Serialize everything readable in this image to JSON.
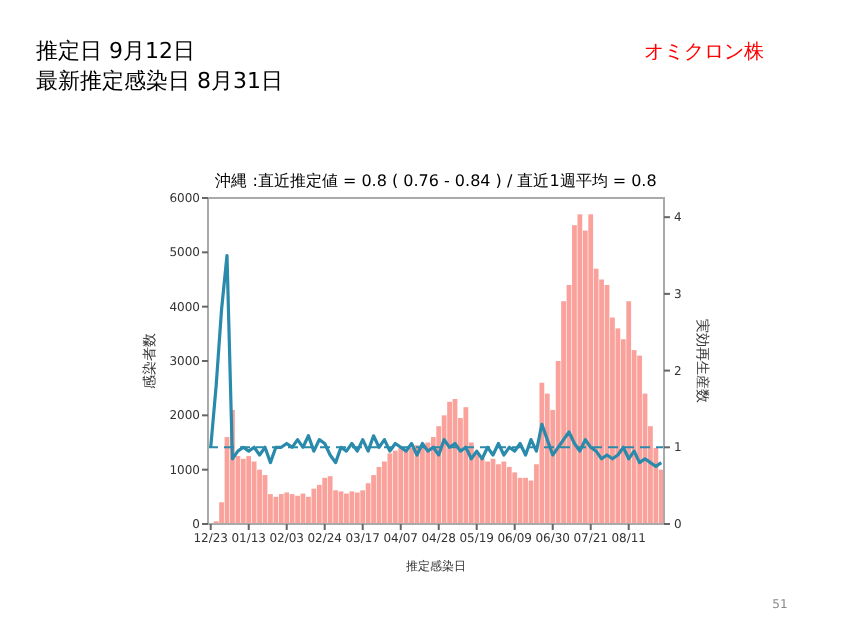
{
  "chart_data": {
    "type": "bar",
    "title": "沖縄 :直近推定値 = 0.8 ( 0.76 - 0.84 ) / 直近1週平均 = 0.8",
    "xlabel": "推定感染日",
    "ylabel": "感染者数",
    "y2label": "実効再生産数",
    "annotations": [
      "推定日  9月12日",
      "最新推定感染日  8月31日",
      "オミクロン株",
      "51"
    ],
    "categories": [
      "12/23",
      null,
      null,
      null,
      null,
      null,
      null,
      "01/13",
      null,
      null,
      null,
      null,
      null,
      null,
      "02/03",
      null,
      null,
      null,
      null,
      null,
      null,
      "02/24",
      null,
      null,
      null,
      null,
      null,
      null,
      "03/17",
      null,
      null,
      null,
      null,
      null,
      null,
      "04/07",
      null,
      null,
      null,
      null,
      null,
      null,
      "04/28",
      null,
      null,
      null,
      null,
      null,
      null,
      "05/19",
      null,
      null,
      null,
      null,
      null,
      null,
      "06/09",
      null,
      null,
      null,
      null,
      null,
      null,
      "06/30",
      null,
      null,
      null,
      null,
      null,
      null,
      "07/21",
      null,
      null,
      null,
      null,
      null,
      null,
      "08/11",
      null,
      null,
      null,
      null,
      null,
      null
    ],
    "ylim": [
      0,
      6000
    ],
    "yticks": [
      0,
      1000,
      2000,
      3000,
      4000,
      5000,
      6000
    ],
    "y2lim": [
      0,
      4.25
    ],
    "y2ticks": [
      0,
      1,
      2,
      3,
      4
    ],
    "series": [
      {
        "color": "#f9a19a",
        "values": [
          0,
          50,
          400,
          1600,
          2100,
          1250,
          1200,
          1250,
          1150,
          1000,
          900,
          550,
          500,
          550,
          580,
          550,
          520,
          560,
          500,
          650,
          720,
          850,
          880,
          620,
          600,
          560,
          600,
          580,
          620,
          750,
          900,
          1050,
          1150,
          1300,
          1350,
          1400,
          1350,
          1400,
          1450,
          1400,
          1500,
          1600,
          1800,
          2000,
          2250,
          2300,
          1950,
          2150,
          1500,
          1300,
          1200,
          1150,
          1200,
          1100,
          1150,
          1050,
          950,
          850,
          850,
          800,
          1100,
          2600,
          2400,
          2100,
          3000,
          4100,
          4400,
          5500,
          5700,
          5400,
          5700,
          4700,
          4500,
          4400,
          3800,
          3600,
          3400,
          4100,
          3200,
          3100,
          2400,
          1800,
          1400,
          1000
        ]
      },
      {
        "type": "line",
        "axis": "y2",
        "color": "#2a8aab",
        "values": [
          1.0,
          1.8,
          2.8,
          3.5,
          0.85,
          0.95,
          1.0,
          0.95,
          1.0,
          0.9,
          1.0,
          0.8,
          1.0,
          1.0,
          1.05,
          1.0,
          1.1,
          1.0,
          1.15,
          0.95,
          1.1,
          1.05,
          0.9,
          0.8,
          1.0,
          0.95,
          1.05,
          0.95,
          1.1,
          0.95,
          1.15,
          1.0,
          1.1,
          0.95,
          1.05,
          1.0,
          0.95,
          1.05,
          0.9,
          1.05,
          0.95,
          1.0,
          0.9,
          1.1,
          1.0,
          1.05,
          0.95,
          1.0,
          0.85,
          0.95,
          0.85,
          1.0,
          0.9,
          1.05,
          0.9,
          1.0,
          0.95,
          1.05,
          0.9,
          1.1,
          0.95,
          1.3,
          1.1,
          0.9,
          1.0,
          1.1,
          1.2,
          1.05,
          0.95,
          1.1,
          1.0,
          0.95,
          0.85,
          0.9,
          0.85,
          0.9,
          1.0,
          0.85,
          0.95,
          0.8,
          0.85,
          0.8,
          0.75,
          0.8
        ]
      }
    ],
    "ref_lines": [
      {
        "axis": "y2",
        "value": 1,
        "color": "#2a8aab",
        "line_style": "dashed"
      }
    ],
    "grid": false
  }
}
